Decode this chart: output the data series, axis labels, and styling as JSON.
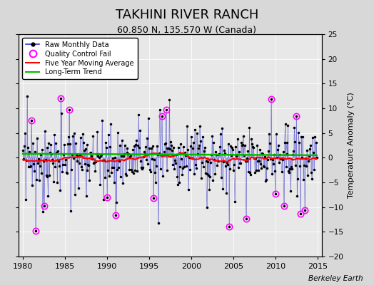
{
  "title": "TAKHINI RIVER RANCH",
  "subtitle": "60.850 N, 135.570 W (Canada)",
  "ylabel": "Temperature Anomaly (°C)",
  "watermark": "Berkeley Earth",
  "xlim": [
    1979.5,
    2015.5
  ],
  "ylim": [
    -20,
    25
  ],
  "yticks": [
    -20,
    -15,
    -10,
    -5,
    0,
    5,
    10,
    15,
    20,
    25
  ],
  "xticks": [
    1980,
    1985,
    1990,
    1995,
    2000,
    2005,
    2010,
    2015
  ],
  "bg_color": "#d8d8d8",
  "plot_bg_color": "#e8e8e8",
  "grid_color": "#cccccc",
  "raw_line_color": "#3333cc",
  "raw_marker_color": "black",
  "moving_avg_color": "red",
  "trend_color": "#00bb00",
  "qc_fail_color": "magenta",
  "title_fontsize": 13,
  "subtitle_fontsize": 9,
  "seed": 42,
  "n_months": 420,
  "start_year": 1980.0
}
